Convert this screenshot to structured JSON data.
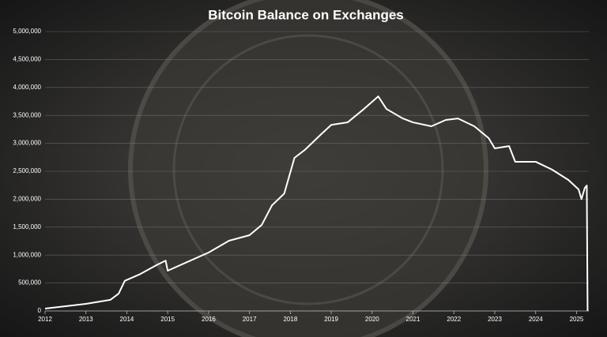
{
  "chart_data": {
    "type": "line",
    "title": "Bitcoin Balance on Exchanges",
    "x": [
      2012.0,
      2013.0,
      2013.6,
      2013.8,
      2013.95,
      2014.3,
      2014.75,
      2014.95,
      2015.0,
      2015.55,
      2016.0,
      2016.5,
      2017.0,
      2017.3,
      2017.55,
      2017.85,
      2018.1,
      2018.35,
      2018.75,
      2019.0,
      2019.4,
      2019.8,
      2020.15,
      2020.35,
      2020.75,
      2021.0,
      2021.45,
      2021.8,
      2022.1,
      2022.5,
      2022.85,
      2023.0,
      2023.35,
      2023.5,
      2024.0,
      2024.4,
      2024.8,
      2025.05,
      2025.12,
      2025.2,
      2025.25,
      2025.27
    ],
    "series": [
      {
        "name": "Bitcoin Balance on Exchanges",
        "color": "#ffffff",
        "values": [
          42000,
          127000,
          200000,
          310000,
          540000,
          650000,
          830000,
          900000,
          720000,
          900000,
          1045000,
          1257000,
          1356000,
          1540000,
          1890000,
          2100000,
          2740000,
          2880000,
          3160000,
          3330000,
          3375000,
          3615000,
          3840000,
          3615000,
          3445000,
          3375000,
          3305000,
          3418000,
          3445000,
          3305000,
          3093000,
          2910000,
          2950000,
          2670000,
          2670000,
          2530000,
          2345000,
          2175000,
          2000000,
          2200000,
          2245000,
          0
        ]
      }
    ],
    "xlim": [
      2012,
      2025.3
    ],
    "xticks": [
      2012,
      2013,
      2014,
      2015,
      2016,
      2017,
      2018,
      2019,
      2020,
      2021,
      2022,
      2023,
      2024,
      2025
    ],
    "ylim": [
      0,
      5000000
    ],
    "yticks": [
      0,
      {
        "value": 500000,
        "label": "500,000"
      },
      {
        "value": 1000000,
        "label": "1,000,000"
      },
      {
        "value": 1500000,
        "label": "1,500,000"
      },
      {
        "value": 2000000,
        "label": "2,000,000"
      },
      {
        "value": 2500000,
        "label": "2,500,000"
      },
      {
        "value": 3000000,
        "label": "3,000,000"
      },
      {
        "value": 3500000,
        "label": "3,500,000"
      },
      {
        "value": 4000000,
        "label": "4,000,000"
      },
      {
        "value": 4500000,
        "label": "4,500,000"
      },
      {
        "value": 5000000,
        "label": "5,000,000"
      }
    ],
    "grid": true
  }
}
